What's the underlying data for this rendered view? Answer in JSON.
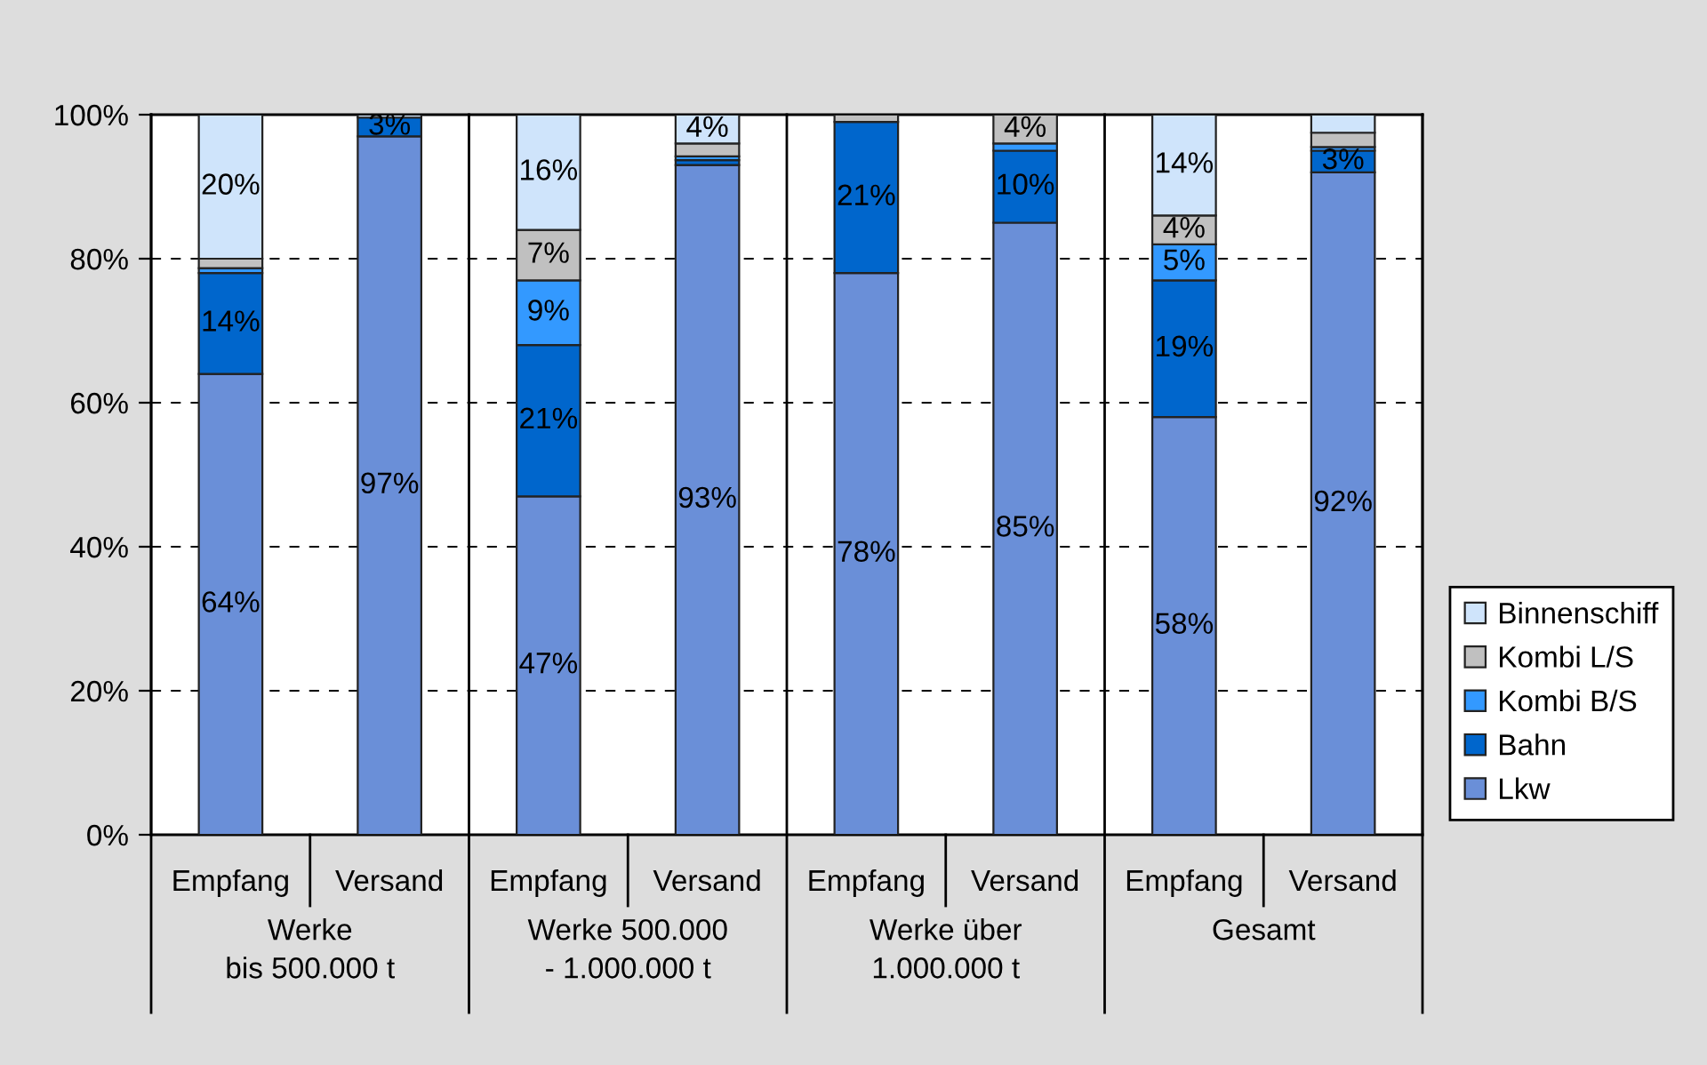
{
  "chart_data": {
    "type": "bar",
    "stacked": true,
    "categories": [
      "Empfang",
      "Versand",
      "Empfang",
      "Versand",
      "Empfang",
      "Versand",
      "Empfang",
      "Versand"
    ],
    "series": [
      {
        "name": "Lkw",
        "color": "#6a8fd8",
        "values": [
          64,
          97,
          47,
          93,
          78,
          85,
          58,
          92
        ],
        "value_labels": [
          "64%",
          "97%",
          "47%",
          "93%",
          "78%",
          "85%",
          "58%",
          "92%"
        ]
      },
      {
        "name": "Bahn",
        "color": "#0066cc",
        "values": [
          14,
          2.6,
          21,
          0.7,
          21,
          10,
          19,
          3
        ],
        "value_labels": [
          "14%",
          "3%",
          "21%",
          null,
          "21%",
          "10%",
          "19%",
          "3%"
        ]
      },
      {
        "name": "Kombi B/S",
        "color": "#3399ff",
        "values": [
          0.7,
          null,
          9,
          0.5,
          null,
          1,
          5,
          0.5
        ],
        "value_labels": [
          null,
          null,
          "9%",
          null,
          null,
          null,
          "5%",
          null
        ]
      },
      {
        "name": "Kombi L/S",
        "color": "#c0c0c0",
        "values": [
          1.3,
          null,
          7,
          1.8,
          1,
          4,
          4,
          2
        ],
        "value_labels": [
          null,
          null,
          "7%",
          null,
          null,
          "4%",
          "4%",
          null
        ]
      },
      {
        "name": "Binnenschiff",
        "color": "#cfe4fb",
        "values": [
          20,
          0.4,
          16,
          4,
          null,
          null,
          14,
          2.5
        ],
        "value_labels": [
          "20%",
          null,
          "16%",
          "4%",
          null,
          null,
          "14%",
          null
        ]
      }
    ],
    "ylim": [
      0,
      100
    ],
    "yticks": [
      {
        "value": 0,
        "label": "0%"
      },
      {
        "value": 20,
        "label": "20%"
      },
      {
        "value": 40,
        "label": "40%"
      },
      {
        "value": 60,
        "label": "60%"
      },
      {
        "value": 80,
        "label": "80%"
      },
      {
        "value": 100,
        "label": "100%"
      }
    ],
    "grid": "y",
    "legend": "bottom right",
    "annotations": [
      "Werke\nbis 500.000 t",
      "Werke 500.000\n- 1.000.000 t",
      "Werke über\n1.000.000 t",
      "Gesamt"
    ]
  }
}
